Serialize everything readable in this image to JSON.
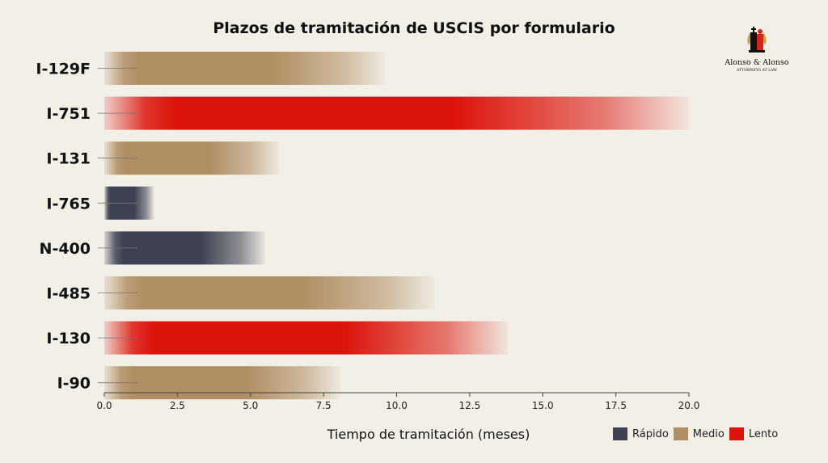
{
  "chart_data": {
    "type": "bar",
    "orientation": "horizontal",
    "title": "Plazos de tramitación de USCIS por formulario",
    "xlabel": "Tiempo de tramitación (meses)",
    "ylabel": "",
    "xlim": [
      0,
      20
    ],
    "xticks": [
      "0.0",
      "2.5",
      "5.0",
      "7.5",
      "10.0",
      "12.5",
      "15.0",
      "17.5",
      "20.0"
    ],
    "categories": [
      "I-129F",
      "I-751",
      "I-131",
      "I-765",
      "N-400",
      "I-485",
      "I-130",
      "I-90"
    ],
    "values": [
      9.6,
      20.0,
      6.0,
      1.7,
      5.5,
      11.3,
      13.8,
      8.1
    ],
    "speed": [
      "Medio",
      "Lento",
      "Medio",
      "Rápido",
      "Rápido",
      "Medio",
      "Lento",
      "Medio"
    ],
    "grid": false,
    "legend": [
      {
        "label": "Rápido",
        "color": "#3d4152"
      },
      {
        "label": "Medio",
        "color": "#b08e63"
      },
      {
        "label": "Lento",
        "color": "#dc150c"
      }
    ],
    "legend_position": "bottom-right"
  },
  "logo": {
    "name": "Alonso & Alonso",
    "subtitle": "ATTORNEYS AT LAW",
    "icon": "chess-king-queen-logo"
  }
}
